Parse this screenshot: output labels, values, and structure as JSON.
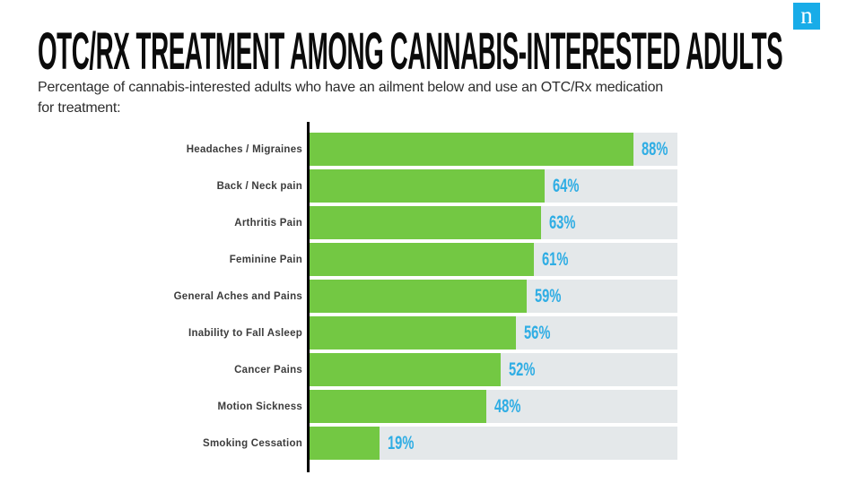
{
  "logo": {
    "letter": "n",
    "bg_color": "#18ACE8",
    "text_color": "#FFFFFF"
  },
  "header": {
    "title": "OTC/RX TREATMENT AMONG CANNABIS-INTERESTED ADULTS",
    "subtitle_lines": [
      "Percentage of cannabis-interested adults who have an ailment below and use an OTC/Rx medication",
      "for treatment:"
    ]
  },
  "chart_data": {
    "type": "bar",
    "orientation": "horizontal",
    "title": "OTC/RX TREATMENT AMONG CANNABIS-INTERESTED ADULTS",
    "categories": [
      "Headaches / Migraines",
      "Back / Neck pain",
      "Arthritis Pain",
      "Feminine Pain",
      "General Aches and Pains",
      "Inability to Fall Asleep",
      "Cancer Pains",
      "Motion Sickness",
      "Smoking Cessation"
    ],
    "values": [
      88,
      64,
      63,
      61,
      59,
      56,
      52,
      48,
      19
    ],
    "value_labels": [
      "88%",
      "64%",
      "63%",
      "61%",
      "59%",
      "56%",
      "52%",
      "48%",
      "19%"
    ],
    "xlim": [
      0,
      100
    ],
    "xlabel": "",
    "ylabel": "",
    "grid": false,
    "legend": false,
    "bar_color": "#73C843",
    "track_color": "#E4E8EA",
    "value_label_color": "#2FADE4",
    "category_label_color": "#3C3C3C",
    "axis_color": "#000000"
  }
}
